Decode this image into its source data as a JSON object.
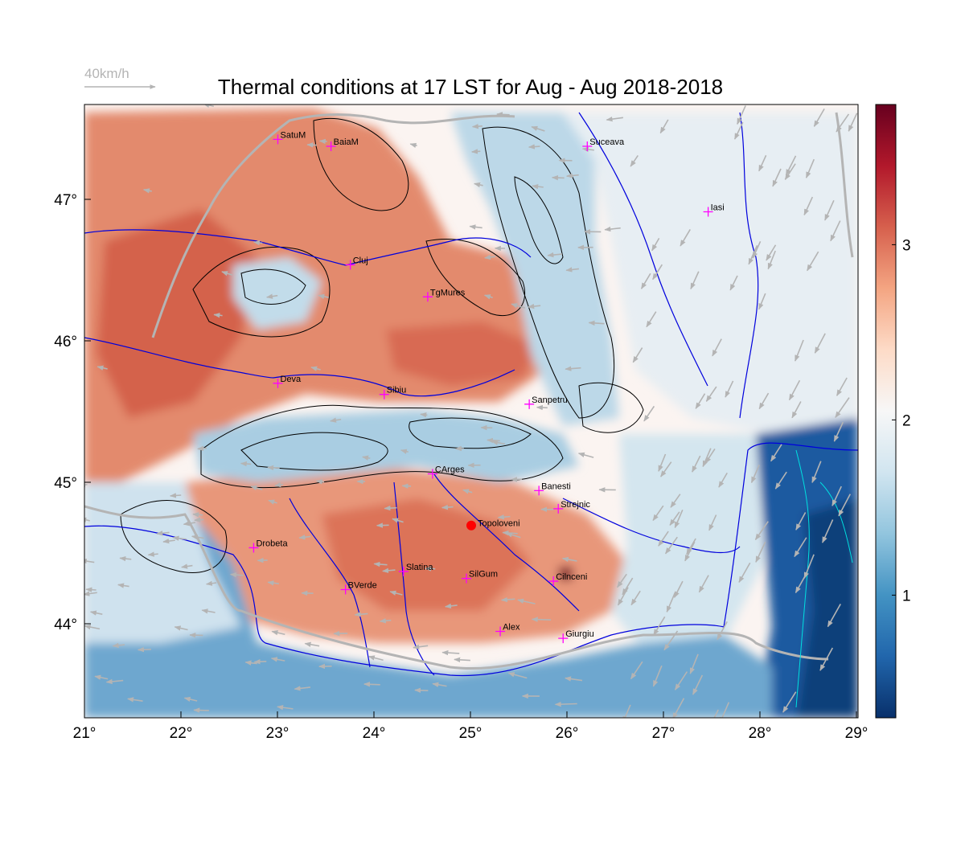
{
  "title": "Thermal conditions at 17 LST for Aug - Aug  2018-2018",
  "wind_scale": {
    "label": "40km/h",
    "arrow_color": "#b4b4b4"
  },
  "map": {
    "lon_ticks": [
      "21°",
      "22°",
      "23°",
      "24°",
      "25°",
      "26°",
      "27°",
      "28°",
      "29°"
    ],
    "lat_ticks": [
      "47°",
      "46°",
      "45°",
      "44°"
    ],
    "lon_range": [
      21,
      29
    ],
    "lat_range": [
      43.3,
      47.7
    ]
  },
  "colorbar": {
    "range": [
      0.3,
      3.8
    ],
    "ticks": [
      "3",
      "2",
      "1"
    ],
    "tick_values": [
      3,
      2,
      1
    ],
    "stops": [
      "#08306b",
      "#2166ac",
      "#4393c3",
      "#92c5de",
      "#d1e5f0",
      "#f7f7f7",
      "#fddbc7",
      "#f4a582",
      "#d6604d",
      "#b2182b",
      "#67001f"
    ]
  },
  "cities": [
    {
      "name": "SatuM",
      "lon": 23.0,
      "lat": 47.45
    },
    {
      "name": "BaiaM",
      "lon": 23.55,
      "lat": 47.4
    },
    {
      "name": "Suceava",
      "lon": 26.2,
      "lat": 47.4
    },
    {
      "name": "Iasi",
      "lon": 27.45,
      "lat": 46.93
    },
    {
      "name": "Cluj",
      "lon": 23.75,
      "lat": 46.55
    },
    {
      "name": "TgMures",
      "lon": 24.55,
      "lat": 46.32
    },
    {
      "name": "Deva",
      "lon": 23.0,
      "lat": 45.7
    },
    {
      "name": "Sibiu",
      "lon": 24.1,
      "lat": 45.62
    },
    {
      "name": "Sanpetru",
      "lon": 25.6,
      "lat": 45.55
    },
    {
      "name": "CArges",
      "lon": 24.6,
      "lat": 45.05
    },
    {
      "name": "Banesti",
      "lon": 25.7,
      "lat": 44.93
    },
    {
      "name": "Strejnic",
      "lon": 25.9,
      "lat": 44.8
    },
    {
      "name": "Drobeta",
      "lon": 22.75,
      "lat": 44.52
    },
    {
      "name": "Slatina",
      "lon": 24.3,
      "lat": 44.35
    },
    {
      "name": "SilGum",
      "lon": 24.95,
      "lat": 44.3
    },
    {
      "name": "Cilnceni",
      "lon": 25.85,
      "lat": 44.28
    },
    {
      "name": "BVerde",
      "lon": 23.7,
      "lat": 44.22
    },
    {
      "name": "Alex",
      "lon": 25.3,
      "lat": 43.92
    },
    {
      "name": "Giurgiu",
      "lon": 25.95,
      "lat": 43.87
    }
  ],
  "highlight_station": {
    "name": "Topoloveni",
    "lon": 25.0,
    "lat": 44.68,
    "color": "#ff0000"
  },
  "colors": {
    "city_marker": "#ff00ff",
    "rivers": "#0000dd",
    "borders": "#b4b4b4",
    "contours": "#000000"
  }
}
